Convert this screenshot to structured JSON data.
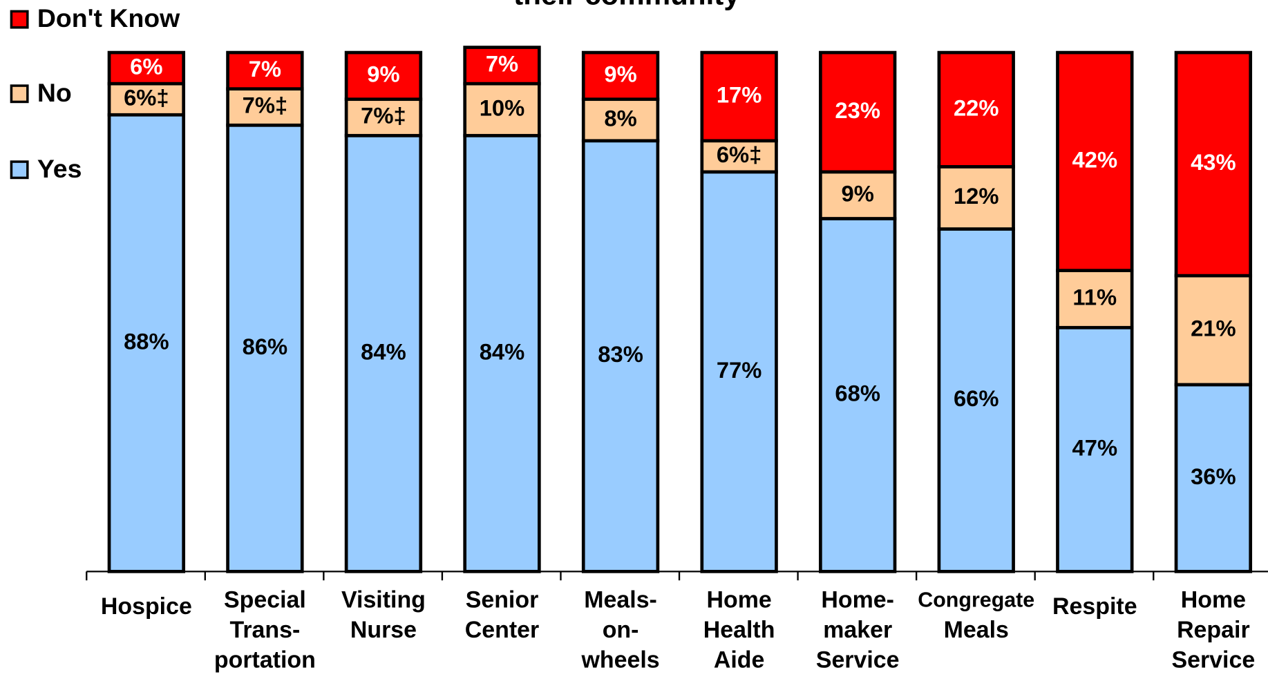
{
  "chart_data": {
    "type": "stacked_bar",
    "title": "their community",
    "categories": [
      [
        "Hospice"
      ],
      [
        "Special",
        "Trans-",
        "portation"
      ],
      [
        "Visiting",
        "Nurse"
      ],
      [
        "Senior",
        "Center"
      ],
      [
        "Meals-",
        "on-",
        "wheels"
      ],
      [
        "Home",
        "Health",
        "Aide"
      ],
      [
        "Home-",
        "maker",
        "Service"
      ],
      [
        "Congregate",
        "Meals"
      ],
      [
        "Respite"
      ],
      [
        "Home",
        "Repair",
        "Service"
      ]
    ],
    "series": [
      {
        "name": "Yes",
        "color": "#99ccff",
        "values": [
          88,
          86,
          84,
          84,
          83,
          77,
          68,
          66,
          47,
          36
        ],
        "value_labels": [
          "88%",
          "86%",
          "84%",
          "84%",
          "83%",
          "77%",
          "68%",
          "66%",
          "47%",
          "36%"
        ]
      },
      {
        "name": "No",
        "color": "#ffcc99",
        "values": [
          6,
          7,
          7,
          10,
          8,
          6,
          9,
          12,
          11,
          21
        ],
        "value_labels": [
          "6%‡",
          "7%‡",
          "7%‡",
          "10%",
          "8%",
          "6%‡",
          "9%",
          "12%",
          "11%",
          "21%"
        ]
      },
      {
        "name": "Don't Know",
        "color": "#ff0000",
        "values": [
          6,
          7,
          9,
          7,
          9,
          17,
          23,
          22,
          42,
          43
        ],
        "value_labels": [
          "6%",
          "7%",
          "9%",
          "7%",
          "9%",
          "17%",
          "23%",
          "22%",
          "42%",
          "43%"
        ]
      }
    ]
  }
}
